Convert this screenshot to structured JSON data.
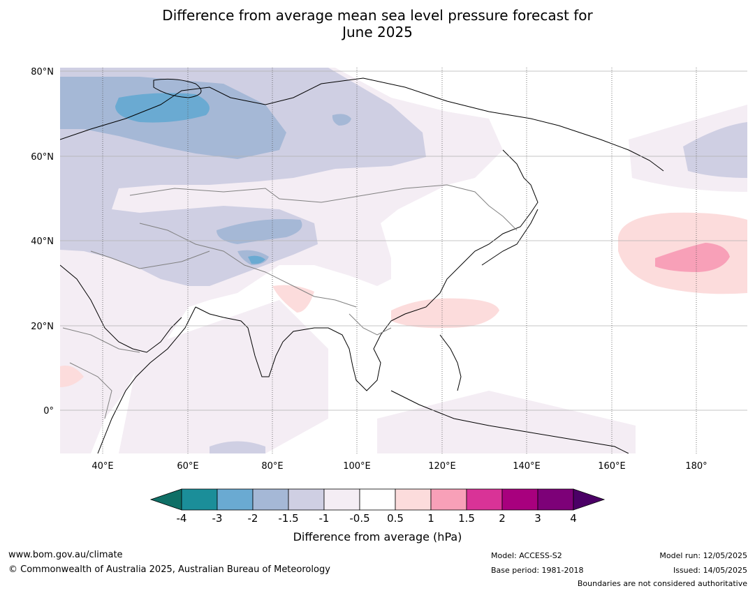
{
  "title_line1": "Difference from average mean sea level pressure forecast for",
  "title_line2": "June 2025",
  "map": {
    "lat_labels": [
      "80°N",
      "60°N",
      "40°N",
      "20°N",
      "0°"
    ],
    "lon_labels": [
      "40°E",
      "60°E",
      "80°E",
      "100°E",
      "120°E",
      "140°E",
      "160°E",
      "180°"
    ]
  },
  "colorbar": {
    "label": "Difference from average (hPa)",
    "ticks": [
      "-4",
      "-3",
      "-2",
      "-1.5",
      "-1",
      "-0.5",
      "0.5",
      "1",
      "1.5",
      "2",
      "3",
      "4"
    ],
    "colors": [
      "#0f6f66",
      "#1b8e99",
      "#6aaad2",
      "#a5b8d6",
      "#cfcfe3",
      "#f4edf4",
      "#ffffff",
      "#fcdcdc",
      "#f8a0b8",
      "#d93397",
      "#a8007e",
      "#7d0178",
      "#4b0066"
    ]
  },
  "footer": {
    "website": "www.bom.gov.au/climate",
    "copyright": "© Commonwealth of Australia 2025, Australian Bureau of Meteorology",
    "model": "Model: ACCESS-S2",
    "base_period": "Base period: 1981-2018",
    "model_run": "Model run: 12/05/2025",
    "issued": "Issued: 14/05/2025",
    "boundaries_note": "Boundaries are not considered authoritative"
  }
}
